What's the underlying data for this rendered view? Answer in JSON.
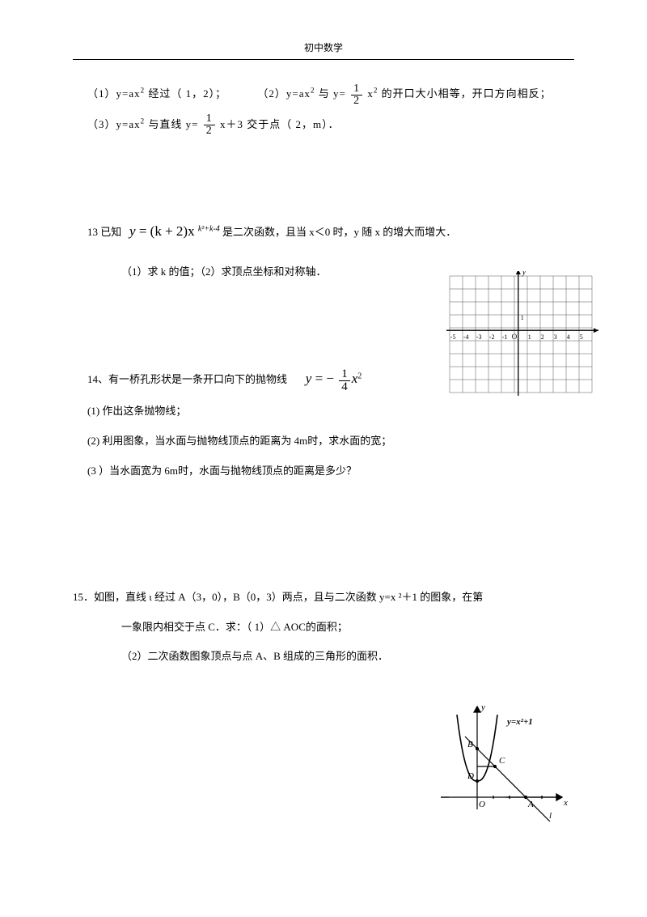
{
  "header": "初中数学",
  "p12": {
    "l1a": "（1）y=ax",
    "l1b": "经过（ 1，2）；",
    "l1c": "（2）y=ax",
    "l1d": " 与  y=",
    "l1e": " x",
    "l1f": "的开口大小相等，开口方向相反；",
    "l2a": "（3）y=ax",
    "l2b": "与直线  y=",
    "l2c": " x＋3 交于点（  2，m）．",
    "f_num": "1",
    "f_den": "2"
  },
  "p13": {
    "lead": "13 已知",
    "eq_a": "y",
    "eq_eq": "=",
    "eq_b": "(k",
    "eq_plus": "+",
    "eq_c": "2)x",
    "exp": "k²+k-4",
    "tail": " 是二次函数，且当    x＜0 时，y 随 x 的增大而增大．",
    "l2": "（1）求 k 的值；（2）求顶点坐标和对称轴．"
  },
  "p14": {
    "l1a": "14、有一桥孔形状是一条开口向下的抛物线",
    "eq_y": "y",
    "eq_eq": "=",
    "eq_neg": "−",
    "f_num": "1",
    "f_den": "4",
    "eq_x": "x",
    "l2": "(1)      作出这条抛物线；",
    "l3": "(2)    利用图象，当水面与抛物线顶点的距离为       4m时，求水面的宽；",
    "l4": "(3 ）当水面宽为    6m时，水面与抛物线顶点的距离是多少？"
  },
  "p15": {
    "l1": "15．如图，直线  ι 经过  A（3，0），B（0，3）两点，且与二次函数     y=x ²＋1  的图象，在第",
    "l2": "一象限内相交于点    C．求：（ 1）△ AOC的面积；",
    "l3": "（2）二次函数图象顶点与点     A、B 组成的三角形的面积．",
    "label": "y=x²+1"
  },
  "grid": {
    "cols": 11,
    "rows": 9,
    "cell": 16,
    "origin_col": 5.3,
    "origin_row": 4.2,
    "x_labels": [
      "-5",
      "-4",
      "-3",
      "-2",
      "-1",
      "O",
      "1",
      "2",
      "3",
      "4",
      "5"
    ],
    "axis_label_x": "x",
    "axis_label_y": "y",
    "grid_color": "#555",
    "bg": "#fff"
  },
  "fig": {
    "axis_color": "#000",
    "curve_color": "#000",
    "labels": {
      "A": "A",
      "B": "B",
      "C": "C",
      "D": "D",
      "O": "O",
      "x": "x",
      "y": "y",
      "l": "l"
    }
  }
}
